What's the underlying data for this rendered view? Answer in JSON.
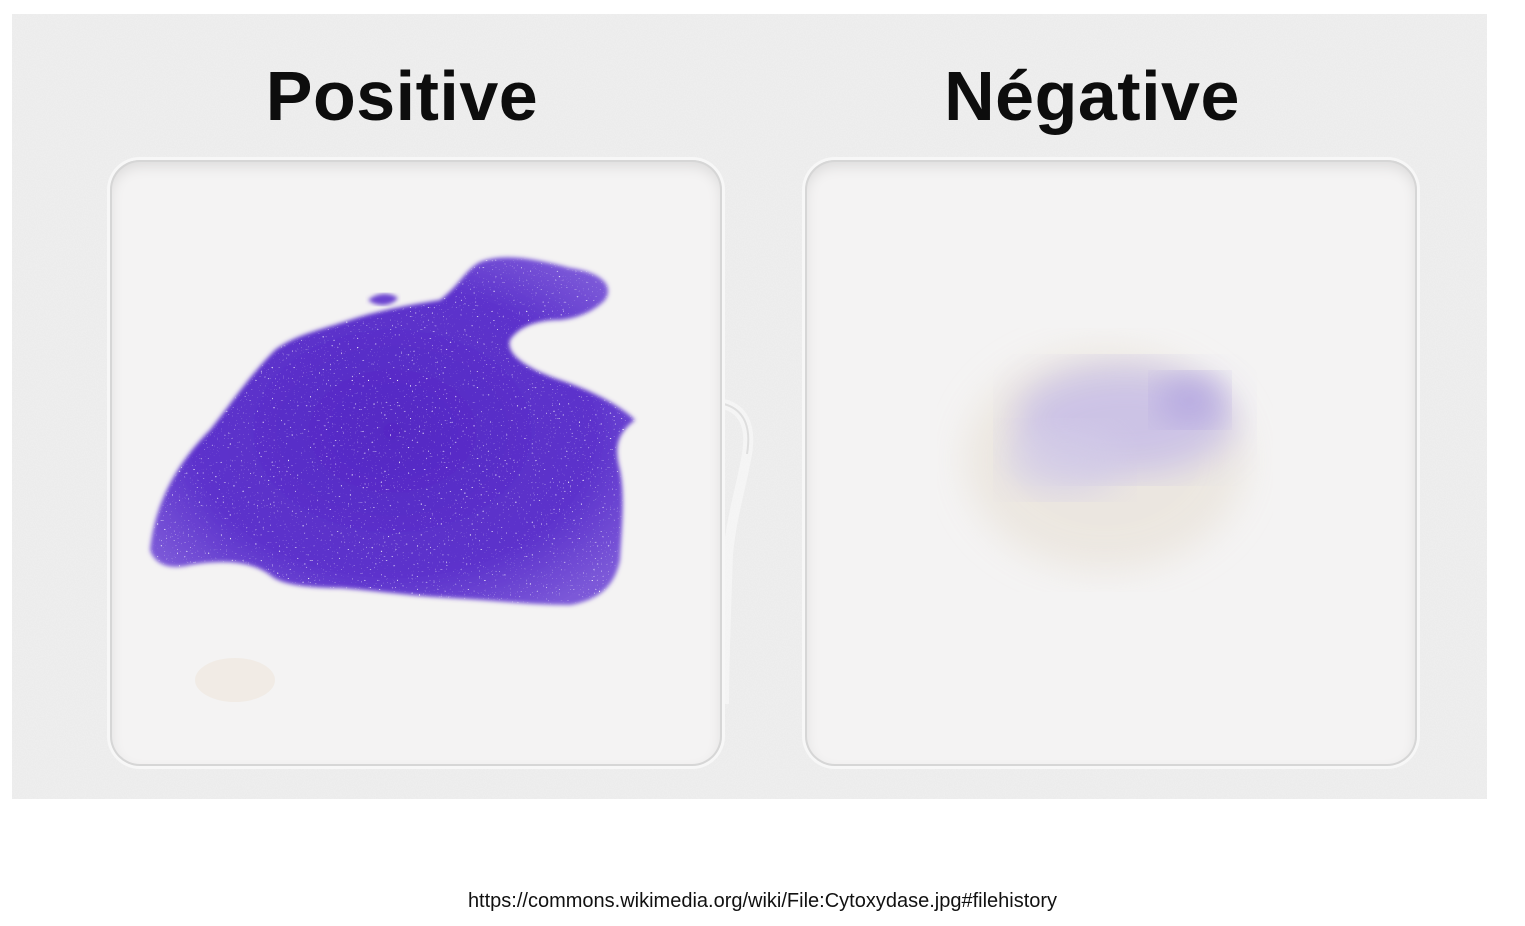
{
  "photo": {
    "labels": {
      "positive": "Positive",
      "negative": "Négative"
    },
    "colors": {
      "tray": "#ececec",
      "well": "#f4f3f3",
      "positive_stain": "#5b2fc9",
      "negative_stain": "#c9c0e6"
    }
  },
  "caption": {
    "source_url": "https://commons.wikimedia.org/wiki/File:Cytoxydase.jpg#filehistory"
  }
}
